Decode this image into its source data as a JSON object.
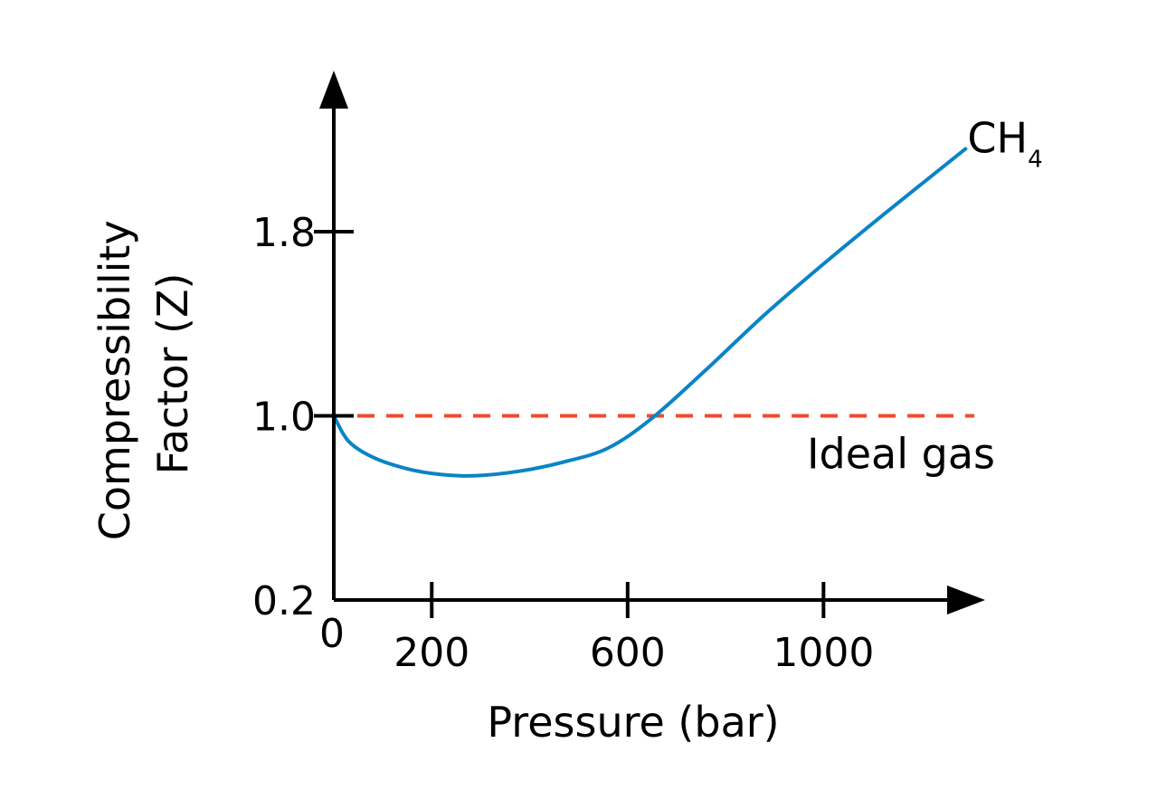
{
  "chart_data": {
    "type": "line",
    "title": "",
    "xlabel": "Pressure (bar)",
    "ylabel_lines": [
      "Compressibility",
      "Factor (Z)"
    ],
    "origin_label": "0",
    "xticks": [
      200,
      600,
      1000
    ],
    "yticks": [
      0.2,
      1.0,
      1.8
    ],
    "xlim": [
      0,
      1330
    ],
    "ylim": [
      0.2,
      2.5
    ],
    "grid": false,
    "legend": "none",
    "series": [
      {
        "name": "CH",
        "name_subscript": "4",
        "color": "#0a84c6",
        "x": [
          0,
          30,
          80,
          150,
          220,
          290,
          380,
          470,
          560,
          650,
          760,
          880,
          1000,
          1120,
          1290
        ],
        "y": [
          1.0,
          0.89,
          0.82,
          0.77,
          0.745,
          0.74,
          0.76,
          0.8,
          0.86,
          0.99,
          1.2,
          1.44,
          1.66,
          1.87,
          2.16
        ]
      }
    ],
    "reference_lines": [
      {
        "label": "Ideal gas",
        "y": 1.0,
        "x_start": 0,
        "x_end": 1330,
        "color": "#f04a2c"
      }
    ]
  }
}
